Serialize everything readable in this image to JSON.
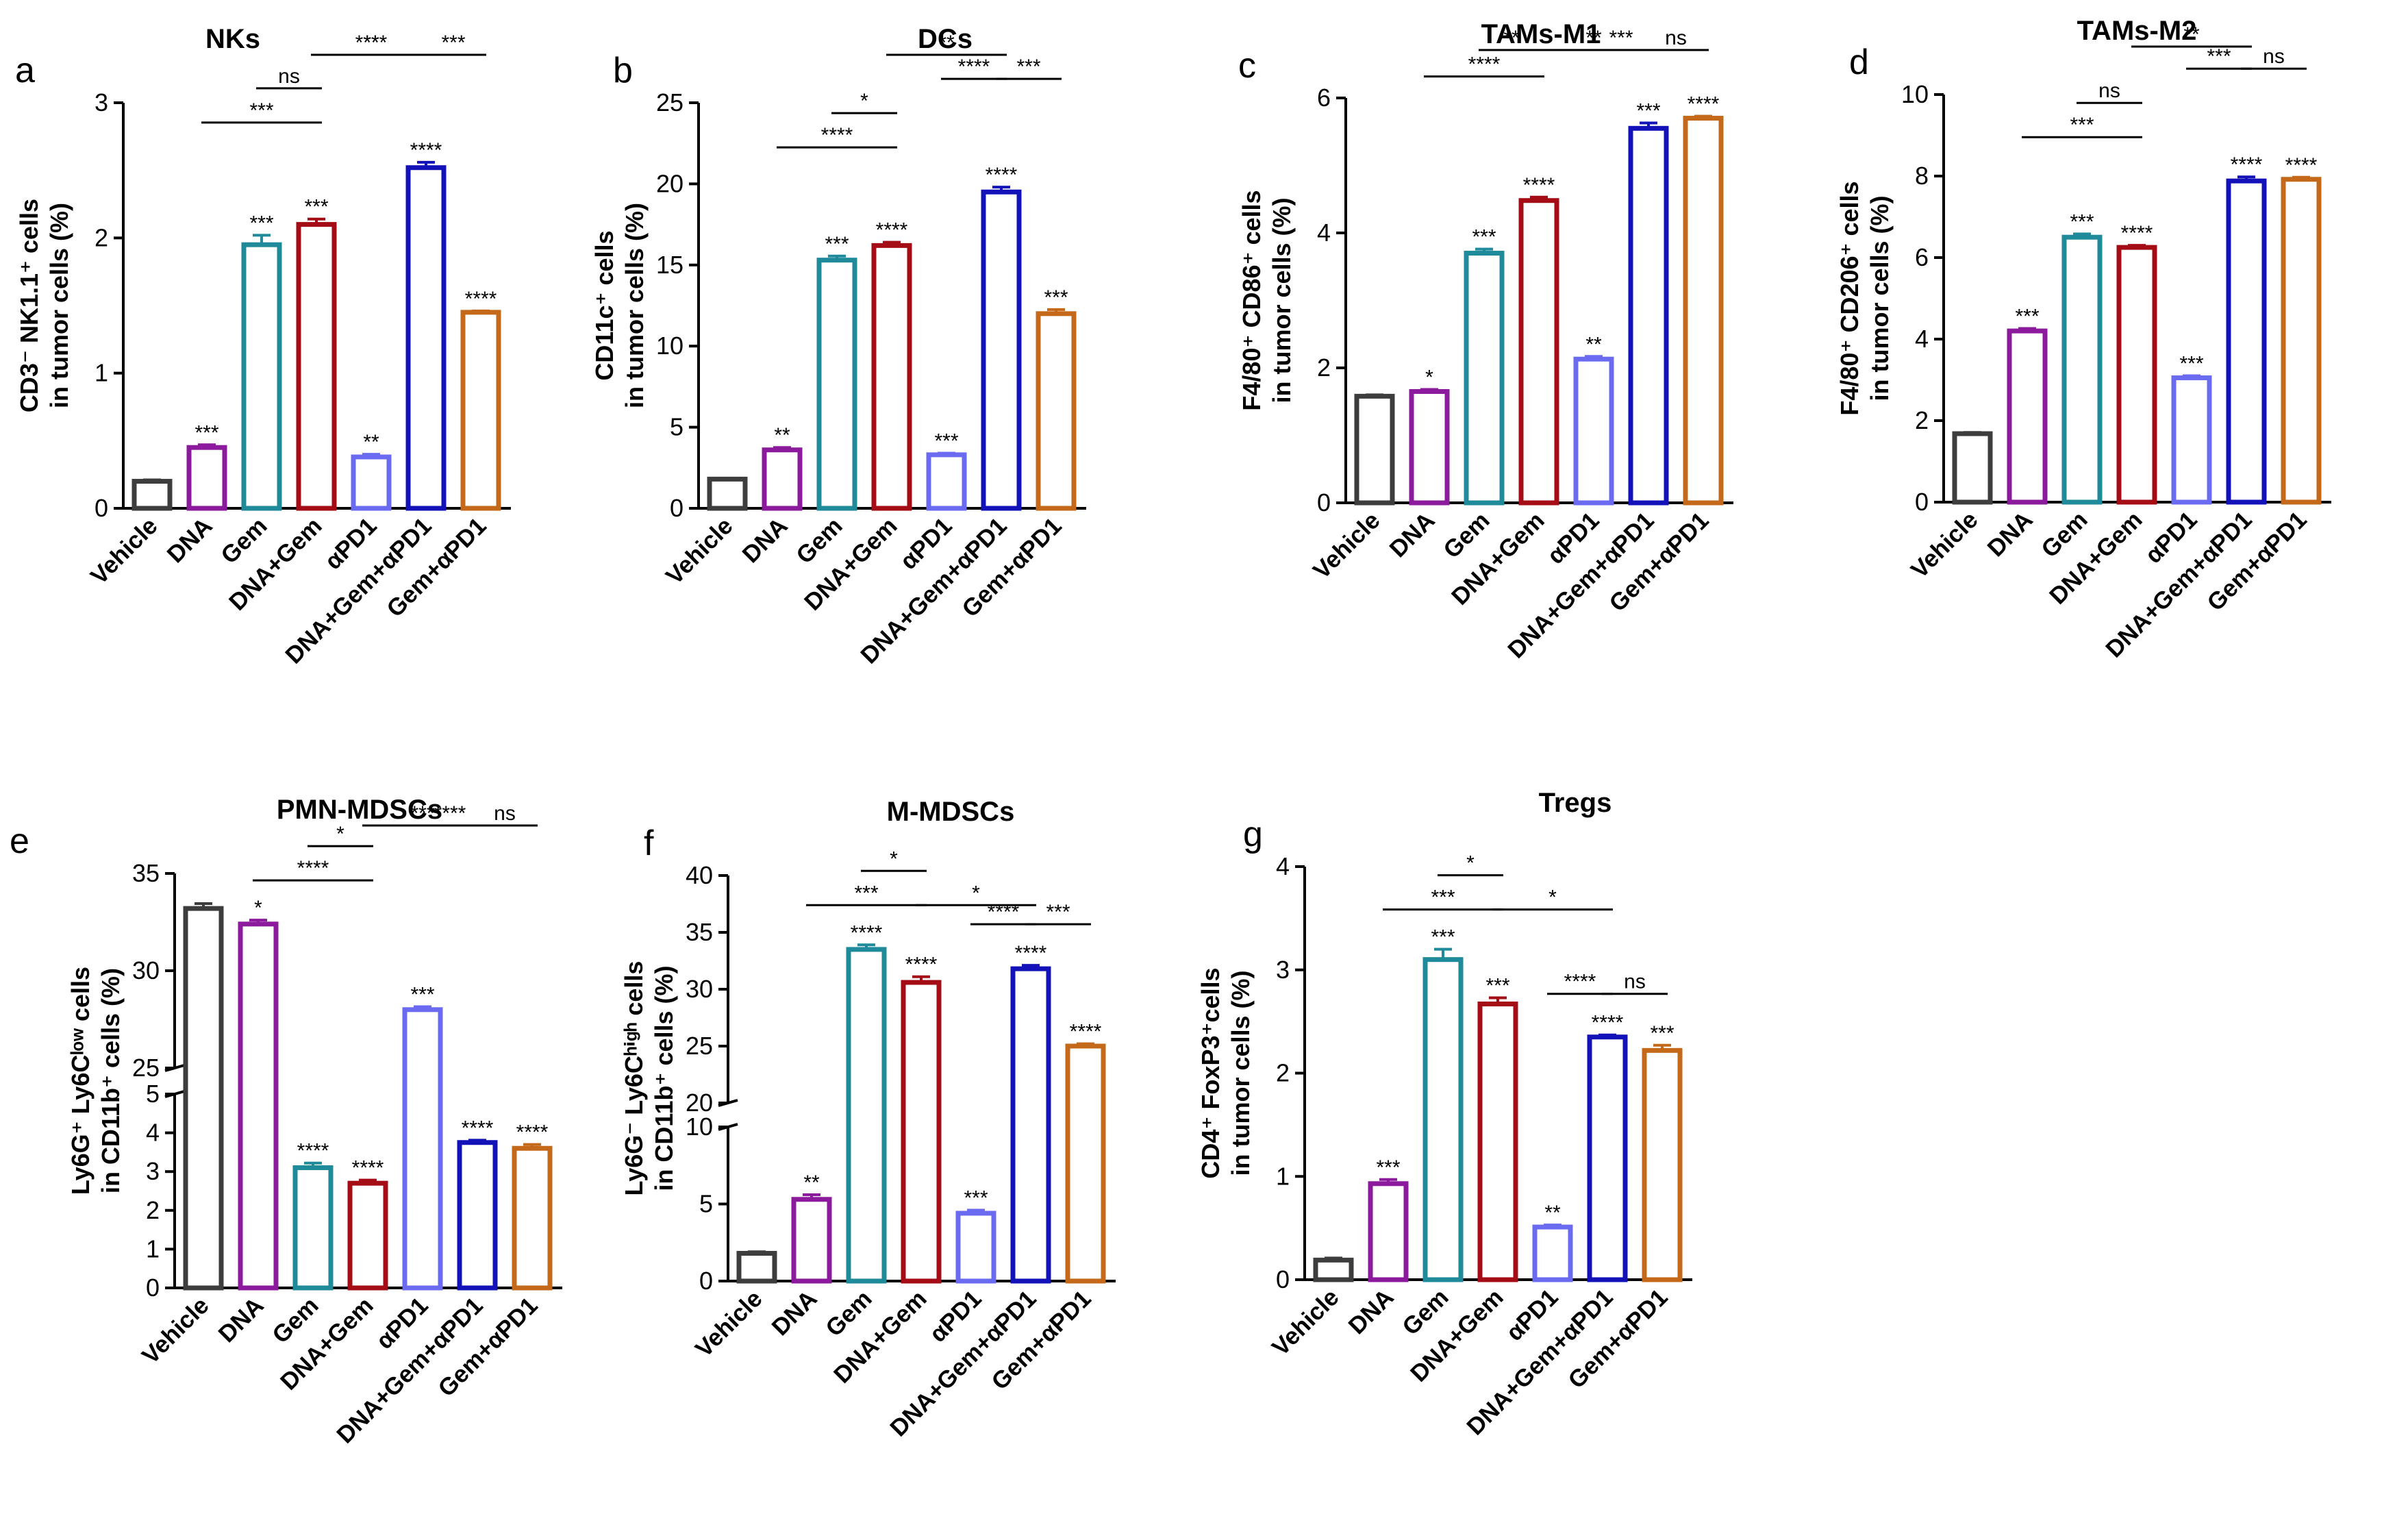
{
  "categories": [
    "Vehicle",
    "DNA",
    "Gem",
    "DNA+Gem",
    "αPD1",
    "DNA+Gem+αPD1",
    "Gem+αPD1"
  ],
  "series_colors": [
    "#3d3d3d",
    "#8b1a9c",
    "#1f8a9a",
    "#a50d16",
    "#6b6bf2",
    "#1212b8",
    "#c4691a"
  ],
  "chart_data": [
    {
      "type": "bar",
      "panel": "a",
      "title": "NKs",
      "ylabel_lines": [
        "CD3⁻ NK1.1⁺ cells",
        "in tumor cells (%)"
      ],
      "ylim": [
        0,
        3
      ],
      "yticks": [
        0,
        1,
        2,
        3
      ],
      "values": [
        0.2,
        0.45,
        1.95,
        2.1,
        0.38,
        2.52,
        1.45
      ],
      "errors": [
        0.01,
        0.02,
        0.07,
        0.04,
        0.02,
        0.04,
        0.01
      ],
      "labels": [
        "",
        "***",
        "***",
        "***",
        "**",
        "****",
        "****"
      ],
      "brackets": [
        {
          "from": 1,
          "to": 3,
          "text": "***",
          "level": 0
        },
        {
          "from": 2,
          "to": 3,
          "text": "ns",
          "level": 1
        },
        {
          "from": 3,
          "to": 5,
          "text": "**",
          "level": 3
        },
        {
          "from": 3,
          "to": 5,
          "text": "****",
          "level": 2
        },
        {
          "from": 5,
          "to": 6,
          "text": "***",
          "level": 2
        }
      ]
    },
    {
      "type": "bar",
      "panel": "b",
      "title": "DCs",
      "ylabel_lines": [
        "CD11c⁺ cells",
        "in tumor cells (%)"
      ],
      "ylim": [
        0,
        25
      ],
      "yticks": [
        0,
        5,
        10,
        15,
        20,
        25
      ],
      "values": [
        1.8,
        3.6,
        15.3,
        16.2,
        3.3,
        19.5,
        12.0
      ],
      "errors": [
        0.05,
        0.15,
        0.25,
        0.2,
        0.1,
        0.3,
        0.25
      ],
      "labels": [
        "",
        "**",
        "***",
        "****",
        "***",
        "****",
        "***"
      ],
      "brackets": [
        {
          "from": 1,
          "to": 3,
          "text": "****",
          "level": 0
        },
        {
          "from": 2,
          "to": 3,
          "text": "*",
          "level": 1
        },
        {
          "from": 3,
          "to": 5,
          "text": "**",
          "level": 3
        },
        {
          "from": 4,
          "to": 5,
          "text": "****",
          "level": 2
        },
        {
          "from": 5,
          "to": 6,
          "text": "***",
          "level": 2
        }
      ]
    },
    {
      "type": "bar",
      "panel": "c",
      "title": "TAMs-M1",
      "ylabel_lines": [
        "F4/80⁺ CD86⁺ cells",
        "in tumor cells (%)"
      ],
      "ylim": [
        0,
        6
      ],
      "yticks": [
        0,
        2,
        4,
        6
      ],
      "values": [
        1.58,
        1.65,
        3.7,
        4.48,
        2.13,
        5.55,
        5.7
      ],
      "errors": [
        0.02,
        0.03,
        0.06,
        0.05,
        0.04,
        0.08,
        0.03
      ],
      "labels": [
        "",
        "*",
        "***",
        "****",
        "**",
        "***",
        "****"
      ],
      "brackets": [
        {
          "from": 1,
          "to": 3,
          "text": "****",
          "level": 0
        },
        {
          "from": 2,
          "to": 3,
          "text": "**",
          "level": 1
        },
        {
          "from": 3,
          "to": 5,
          "text": "**",
          "level": 3
        },
        {
          "from": 4,
          "to": 5,
          "text": "***",
          "level": 2
        },
        {
          "from": 5,
          "to": 6,
          "text": "ns",
          "level": 2
        }
      ]
    },
    {
      "type": "bar",
      "panel": "d",
      "title": "TAMs-M2",
      "ylabel_lines": [
        "F4/80⁺ CD206⁺ cells",
        "in tumor cells (%)"
      ],
      "ylim": [
        0,
        10
      ],
      "yticks": [
        0,
        2,
        4,
        6,
        8,
        10
      ],
      "values": [
        1.68,
        4.2,
        6.5,
        6.25,
        3.05,
        7.88,
        7.92
      ],
      "errors": [
        0.03,
        0.06,
        0.08,
        0.05,
        0.05,
        0.1,
        0.05
      ],
      "labels": [
        "",
        "***",
        "***",
        "****",
        "***",
        "****",
        "****"
      ],
      "brackets": [
        {
          "from": 1,
          "to": 3,
          "text": "***",
          "level": 0
        },
        {
          "from": 2,
          "to": 3,
          "text": "ns",
          "level": 1
        },
        {
          "from": 3,
          "to": 5,
          "text": "**",
          "level": 3
        },
        {
          "from": 4,
          "to": 5,
          "text": "***",
          "level": 2
        },
        {
          "from": 5,
          "to": 6,
          "text": "ns",
          "level": 2
        }
      ]
    },
    {
      "type": "bar",
      "panel": "e",
      "title": "PMN-MDSCs",
      "ylabel_lines": [
        "Ly6G⁺ Ly6Cˡᵒʷ cells",
        "in CD11b⁺ cells (%)"
      ],
      "broken_axis": true,
      "ylim_lower": [
        0,
        5
      ],
      "yticks_lower": [
        0,
        1,
        2,
        3,
        4,
        5
      ],
      "ylim_upper": [
        25,
        35
      ],
      "yticks_upper": [
        25,
        30,
        35
      ],
      "values": [
        33.2,
        32.4,
        3.1,
        2.7,
        28.0,
        3.75,
        3.6
      ],
      "errors": [
        0.25,
        0.2,
        0.12,
        0.08,
        0.15,
        0.06,
        0.1
      ],
      "labels": [
        "",
        "*",
        "****",
        "****",
        "***",
        "****",
        "****"
      ],
      "brackets": [
        {
          "from": 1,
          "to": 3,
          "text": "****",
          "level": 0
        },
        {
          "from": 2,
          "to": 3,
          "text": "*",
          "level": 1
        },
        {
          "from": 3,
          "to": 5,
          "text": "***",
          "level": 3
        },
        {
          "from": 4,
          "to": 5,
          "text": "****",
          "level": 2
        },
        {
          "from": 5,
          "to": 6,
          "text": "ns",
          "level": 2
        }
      ]
    },
    {
      "type": "bar",
      "panel": "f",
      "title": "M-MDSCs",
      "ylabel_lines": [
        "Ly6G⁻ Ly6Cʰⁱᵍʰ cells",
        "in CD11b⁺ cells (%)"
      ],
      "broken_axis": true,
      "ylim_lower": [
        0,
        10
      ],
      "yticks_lower": [
        0,
        5,
        10
      ],
      "ylim_upper": [
        20,
        40
      ],
      "yticks_upper": [
        20,
        25,
        30,
        35,
        40
      ],
      "values": [
        1.8,
        5.3,
        33.5,
        30.6,
        4.4,
        31.8,
        25.0
      ],
      "errors": [
        0.1,
        0.3,
        0.4,
        0.5,
        0.2,
        0.3,
        0.2
      ],
      "labels": [
        "",
        "**",
        "****",
        "****",
        "***",
        "****",
        "****"
      ],
      "brackets": [
        {
          "from": 1,
          "to": 3,
          "text": "***",
          "level": 0
        },
        {
          "from": 2,
          "to": 3,
          "text": "*",
          "level": 1
        },
        {
          "from": 3,
          "to": 5,
          "text": "*",
          "level": 0
        },
        {
          "from": 4,
          "to": 5,
          "text": "****",
          "level": -1
        },
        {
          "from": 5,
          "to": 6,
          "text": "***",
          "level": -1
        }
      ]
    },
    {
      "type": "bar",
      "panel": "g",
      "title": "Tregs",
      "ylabel_lines": [
        "CD4⁺ FoxP3⁺cells",
        "in tumor cells (%)"
      ],
      "ylim": [
        0,
        4
      ],
      "yticks": [
        0,
        1,
        2,
        3,
        4
      ],
      "values": [
        0.19,
        0.93,
        3.1,
        2.67,
        0.51,
        2.35,
        2.22
      ],
      "errors": [
        0.02,
        0.04,
        0.1,
        0.06,
        0.02,
        0.02,
        0.05
      ],
      "labels": [
        "",
        "***",
        "***",
        "***",
        "**",
        "****",
        "***"
      ],
      "brackets": [
        {
          "from": 1,
          "to": 3,
          "text": "***",
          "level": 0
        },
        {
          "from": 2,
          "to": 3,
          "text": "*",
          "level": 1
        },
        {
          "from": 3,
          "to": 5,
          "text": "*",
          "level": 0
        },
        {
          "from": 4,
          "to": 5,
          "text": "****",
          "level": -1
        },
        {
          "from": 5,
          "to": 6,
          "text": "ns",
          "level": -1
        }
      ]
    }
  ]
}
